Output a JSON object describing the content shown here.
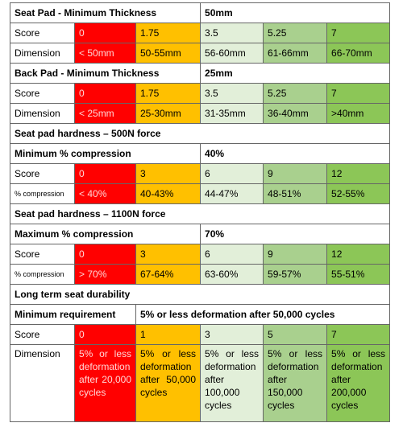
{
  "table": {
    "rows": [
      [
        "Seat Pad - Minimum Thickness",
        "50mm"
      ],
      [
        "Score",
        "0",
        "1.75",
        "3.5",
        "5.25",
        "7"
      ],
      [
        "Dimension",
        "< 50mm",
        "50-55mm",
        "56-60mm",
        "61-66mm",
        "66-70mm"
      ],
      [
        "Back Pad - Minimum Thickness",
        "25mm"
      ],
      [
        "Score",
        "0",
        "1.75",
        "3.5",
        "5.25",
        "7"
      ],
      [
        "Dimension",
        "< 25mm",
        "25-30mm",
        "31-35mm",
        "36-40mm",
        ">40mm"
      ],
      [
        "Seat pad hardness – 500N force"
      ],
      [
        "Minimum % compression",
        "40%"
      ],
      [
        "Score",
        "0",
        "3",
        "6",
        "9",
        "12"
      ],
      [
        "% compression",
        "< 40%",
        "40-43%",
        "44-47%",
        "48-51%",
        "52-55%"
      ],
      [
        "Seat pad hardness – 1100N force"
      ],
      [
        "Maximum % compression",
        "70%"
      ],
      [
        "Score",
        "0",
        "3",
        "6",
        "9",
        "12"
      ],
      [
        "% compression",
        "> 70%",
        "67-64%",
        "63-60%",
        "59-57%",
        "55-51%"
      ],
      [
        "Long term seat durability"
      ],
      [
        "Minimum requirement",
        "5% or less deformation after 50,000 cycles"
      ],
      [
        "Score",
        "0",
        "1",
        "3",
        "5",
        "7"
      ],
      [
        "Dimension",
        "5% or less deformation after 20,000 cycles",
        "5% or less deformation after 50,000 cycles",
        "5% or less deformation after 100,000 cycles",
        "5% or less deformation after 150,000 cycles",
        "5% or less deformation after 200,000 cycles"
      ]
    ]
  }
}
